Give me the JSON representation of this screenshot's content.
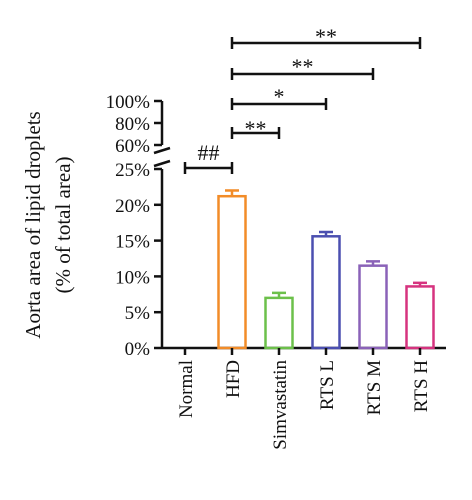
{
  "chart_data": {
    "type": "bar",
    "ylabel_line1": "Aorta area of lipid droplets",
    "ylabel_line2": "(% of total area)",
    "categories": [
      "Normal",
      "HFD",
      "Simvastatin",
      "RTS L",
      "RTS M",
      "RTS H"
    ],
    "values": [
      0,
      21.2,
      7.0,
      15.6,
      11.5,
      8.6
    ],
    "errors": [
      0,
      0.8,
      0.7,
      0.6,
      0.6,
      0.5
    ],
    "colors": [
      "#1a1a1a",
      "#f28c28",
      "#6cc04a",
      "#4b4fb0",
      "#8a62b8",
      "#d6337f"
    ],
    "lower_axis": {
      "ylim": [
        0,
        25
      ],
      "ticks": [
        "0%",
        "5%",
        "10%",
        "15%",
        "20%",
        "25%"
      ]
    },
    "upper_axis": {
      "ylim": [
        60,
        100
      ],
      "ticks": [
        "60%",
        "80%",
        "100%"
      ]
    },
    "annotations": [
      {
        "from": "Normal",
        "to": "HFD",
        "label": "##"
      },
      {
        "from": "HFD",
        "to": "Simvastatin",
        "label": "**"
      },
      {
        "from": "HFD",
        "to": "RTS L",
        "label": "*"
      },
      {
        "from": "HFD",
        "to": "RTS M",
        "label": "**"
      },
      {
        "from": "HFD",
        "to": "RTS H",
        "label": "**"
      }
    ]
  }
}
